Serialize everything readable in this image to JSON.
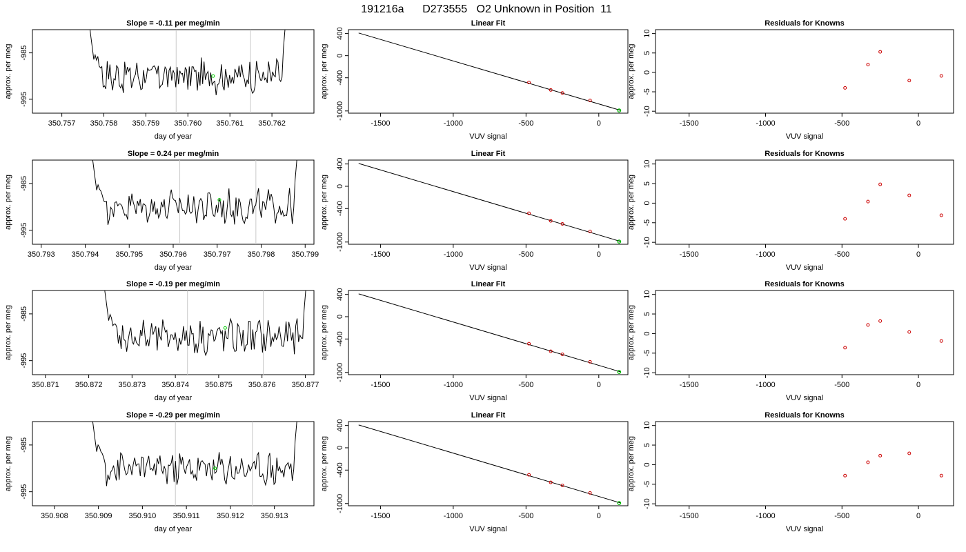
{
  "page_title": "191216a      D273555   O2 Unknown in Position  11",
  "chart_data": [
    {
      "type": "line",
      "panel": "time-series-1",
      "title": "Slope =  -0.11  per meg/min",
      "xlabel": "day of year",
      "ylabel": "approx. per meg",
      "xticks": [
        "350.757",
        "350.758",
        "350.759",
        "350.760",
        "350.761",
        "350.762"
      ],
      "yticks": [
        "-985",
        "-995"
      ],
      "xlim": [
        350.7563,
        350.763
      ],
      "ylim": [
        -998,
        -980
      ],
      "vlines": [
        350.75972,
        350.76149
      ],
      "marker": {
        "x": 350.7606,
        "y": -990.0,
        "color": "#00cc00"
      },
      "series_range": [
        350.7576,
        350.7624
      ]
    },
    {
      "type": "line",
      "panel": "time-series-2",
      "title": "Slope =  0.24  per meg/min",
      "xlabel": "day of year",
      "ylabel": "approx. per meg",
      "xticks": [
        "350.793",
        "350.794",
        "350.795",
        "350.796",
        "350.797",
        "350.798",
        "350.799"
      ],
      "yticks": [
        "-985",
        "-995"
      ],
      "xlim": [
        350.7928,
        350.7992
      ],
      "ylim": [
        -998,
        -980
      ],
      "vlines": [
        350.79615,
        350.79788
      ],
      "marker": {
        "x": 350.79705,
        "y": -988.5,
        "color": "#00cc00"
      },
      "series_range": [
        350.7941,
        350.7989
      ]
    },
    {
      "type": "line",
      "panel": "time-series-3",
      "title": "Slope =  -0.19  per meg/min",
      "xlabel": "day of year",
      "ylabel": "approx. per meg",
      "xticks": [
        "350.871",
        "350.872",
        "350.873",
        "350.874",
        "350.875",
        "350.876",
        "350.877"
      ],
      "yticks": [
        "-985",
        "-995"
      ],
      "xlim": [
        350.8707,
        350.8772
      ],
      "ylim": [
        -998,
        -980
      ],
      "vlines": [
        350.87428,
        350.87603
      ],
      "marker": {
        "x": 350.87515,
        "y": -988.0,
        "color": "#00cc00"
      },
      "series_range": [
        350.8723,
        350.8771
      ]
    },
    {
      "type": "line",
      "panel": "time-series-4",
      "title": "Slope =  -0.29  per meg/min",
      "xlabel": "day of year",
      "ylabel": "approx. per meg",
      "xticks": [
        "350.908",
        "350.909",
        "350.910",
        "350.911",
        "350.912",
        "350.913"
      ],
      "yticks": [
        "-985",
        "-995"
      ],
      "xlim": [
        350.9075,
        350.9139
      ],
      "ylim": [
        -998,
        -980
      ],
      "vlines": [
        350.91075,
        350.9125
      ],
      "marker": {
        "x": 350.91165,
        "y": -990.0,
        "color": "#00cc00"
      },
      "series_range": [
        350.9088,
        350.9136
      ]
    },
    {
      "type": "scatter",
      "panel": "linear-fit-1",
      "title": "Linear Fit",
      "xlabel": "VUV signal",
      "ylabel": "approx. per meg",
      "xticks": [
        "-1500",
        "-1000",
        "-500",
        "0"
      ],
      "yticks": [
        "400",
        "0",
        "-400",
        "-1000"
      ],
      "xlim": [
        -1720,
        200
      ],
      "ylim": [
        -1040,
        470
      ],
      "fit_line": [
        [
          -1650,
          410
        ],
        [
          150,
          -990
        ]
      ],
      "points": [
        [
          -480,
          -485
        ],
        [
          -330,
          -620
        ],
        [
          -250,
          -675
        ],
        [
          -60,
          -810
        ]
      ],
      "unknown": [
        140,
        -992
      ]
    },
    {
      "type": "scatter",
      "panel": "linear-fit-2",
      "title": "Linear Fit",
      "xlabel": "VUV signal",
      "ylabel": "approx. per meg",
      "xticks": [
        "-1500",
        "-1000",
        "-500",
        "0"
      ],
      "yticks": [
        "400",
        "0",
        "-400",
        "-1000"
      ],
      "xlim": [
        -1720,
        200
      ],
      "ylim": [
        -1040,
        470
      ],
      "fit_line": [
        [
          -1650,
          410
        ],
        [
          150,
          -990
        ]
      ],
      "points": [
        [
          -480,
          -485
        ],
        [
          -330,
          -620
        ],
        [
          -250,
          -675
        ],
        [
          -60,
          -810
        ]
      ],
      "unknown": [
        140,
        -992
      ]
    },
    {
      "type": "scatter",
      "panel": "linear-fit-3",
      "title": "Linear Fit",
      "xlabel": "VUV signal",
      "ylabel": "approx. per meg",
      "xticks": [
        "-1500",
        "-1000",
        "-500",
        "0"
      ],
      "yticks": [
        "400",
        "0",
        "-400",
        "-1000"
      ],
      "xlim": [
        -1720,
        200
      ],
      "ylim": [
        -1040,
        470
      ],
      "fit_line": [
        [
          -1650,
          410
        ],
        [
          150,
          -990
        ]
      ],
      "points": [
        [
          -480,
          -485
        ],
        [
          -330,
          -620
        ],
        [
          -250,
          -675
        ],
        [
          -60,
          -810
        ]
      ],
      "unknown": [
        140,
        -992
      ]
    },
    {
      "type": "scatter",
      "panel": "linear-fit-4",
      "title": "Linear Fit",
      "xlabel": "VUV signal",
      "ylabel": "approx. per meg",
      "xticks": [
        "-1500",
        "-1000",
        "-500",
        "0"
      ],
      "yticks": [
        "400",
        "0",
        "-400",
        "-1000"
      ],
      "xlim": [
        -1720,
        200
      ],
      "ylim": [
        -1040,
        470
      ],
      "fit_line": [
        [
          -1650,
          410
        ],
        [
          150,
          -990
        ]
      ],
      "points": [
        [
          -480,
          -485
        ],
        [
          -330,
          -620
        ],
        [
          -250,
          -675
        ],
        [
          -60,
          -810
        ]
      ],
      "unknown": [
        140,
        -992
      ]
    },
    {
      "type": "scatter",
      "panel": "residuals-1",
      "title": "Residuals for Knowns",
      "xlabel": "VUV signal",
      "ylabel": "approx. per meg",
      "xticks": [
        "-1500",
        "-1000",
        "-500",
        "0"
      ],
      "yticks": [
        "10",
        "5",
        "0",
        "-5",
        "-10"
      ],
      "xlim": [
        -1720,
        230
      ],
      "ylim": [
        -10.5,
        11
      ],
      "points": [
        [
          -480,
          -4.0
        ],
        [
          -330,
          2.0
        ],
        [
          -250,
          5.3
        ],
        [
          -60,
          -2.1
        ],
        [
          150,
          -0.9
        ]
      ]
    },
    {
      "type": "scatter",
      "panel": "residuals-2",
      "title": "Residuals for Knowns",
      "xlabel": "VUV signal",
      "ylabel": "approx. per meg",
      "xticks": [
        "-1500",
        "-1000",
        "-500",
        "0"
      ],
      "yticks": [
        "10",
        "5",
        "0",
        "-5",
        "-10"
      ],
      "xlim": [
        -1720,
        230
      ],
      "ylim": [
        -10.5,
        11
      ],
      "points": [
        [
          -480,
          -4.0
        ],
        [
          -330,
          0.4
        ],
        [
          -250,
          4.8
        ],
        [
          -60,
          2.0
        ],
        [
          150,
          -3.1
        ]
      ]
    },
    {
      "type": "scatter",
      "panel": "residuals-3",
      "title": "Residuals for Knowns",
      "xlabel": "VUV signal",
      "ylabel": "approx. per meg",
      "xticks": [
        "-1500",
        "-1000",
        "-500",
        "0"
      ],
      "yticks": [
        "10",
        "5",
        "0",
        "-5",
        "-10"
      ],
      "xlim": [
        -1720,
        230
      ],
      "ylim": [
        -10.5,
        11
      ],
      "points": [
        [
          -480,
          -3.6
        ],
        [
          -330,
          2.2
        ],
        [
          -250,
          3.2
        ],
        [
          -60,
          0.4
        ],
        [
          150,
          -1.9
        ]
      ]
    },
    {
      "type": "scatter",
      "panel": "residuals-4",
      "title": "Residuals for Knowns",
      "xlabel": "VUV signal",
      "ylabel": "approx. per meg",
      "xticks": [
        "-1500",
        "-1000",
        "-500",
        "0"
      ],
      "yticks": [
        "10",
        "5",
        "0",
        "-5",
        "-10"
      ],
      "xlim": [
        -1720,
        230
      ],
      "ylim": [
        -10.5,
        11
      ],
      "points": [
        [
          -480,
          -2.8
        ],
        [
          -330,
          0.6
        ],
        [
          -250,
          2.3
        ],
        [
          -60,
          2.9
        ],
        [
          150,
          -2.8
        ]
      ]
    }
  ]
}
